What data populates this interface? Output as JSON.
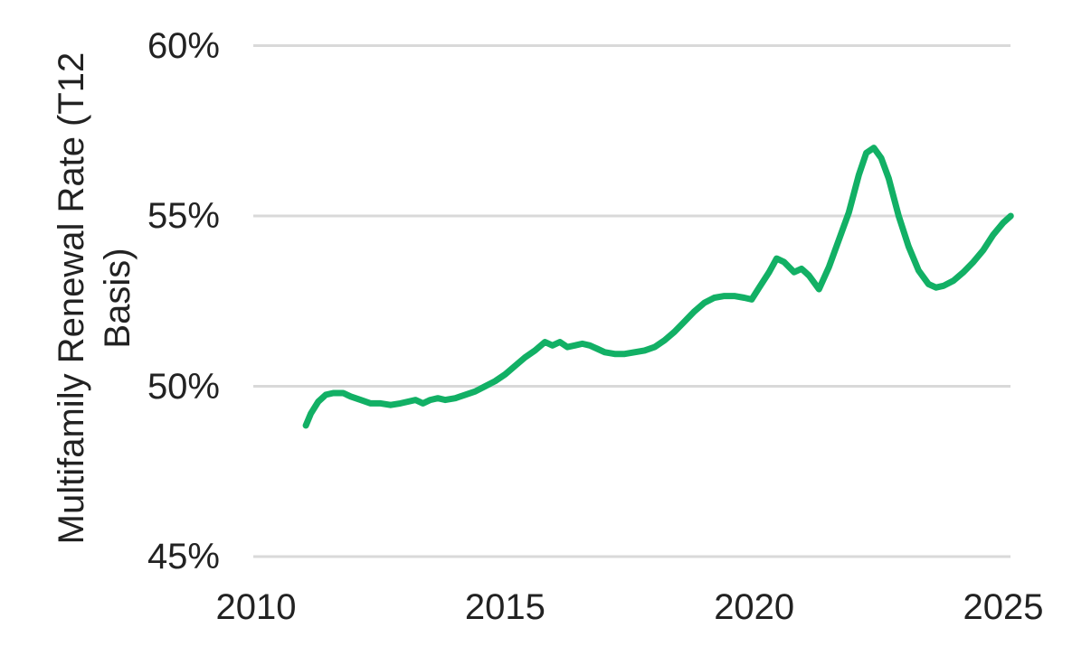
{
  "chart_data": {
    "type": "line",
    "title": "",
    "xlabel": "",
    "ylabel": "Multifamily Renewal Rate (T12 Basis)",
    "ylabel_lines": [
      "Multifamily Renewal Rate (T12",
      "Basis)"
    ],
    "x_ticks": [
      2010,
      2015,
      2020,
      2025
    ],
    "x_tick_labels": [
      "2010",
      "2015",
      "2020",
      "2025"
    ],
    "y_ticks": [
      60,
      55,
      50,
      45
    ],
    "y_tick_labels": [
      "60%",
      "55%",
      "50%",
      "45%"
    ],
    "xlim": [
      2010,
      2025.2
    ],
    "ylim": [
      45,
      60
    ],
    "grid": "horizontal-gridlines-only",
    "legend": "none",
    "colors": {
      "line": "#12b065",
      "gridline": "#d9d9d9",
      "text": "#222222",
      "background": "#ffffff"
    },
    "series": [
      {
        "name": "Multifamily Renewal Rate (T12 Basis)",
        "x": [
          2011.0,
          2011.1,
          2011.25,
          2011.4,
          2011.55,
          2011.75,
          2011.9,
          2012.1,
          2012.3,
          2012.5,
          2012.7,
          2012.9,
          2013.05,
          2013.2,
          2013.35,
          2013.5,
          2013.65,
          2013.8,
          2014.0,
          2014.2,
          2014.4,
          2014.6,
          2014.8,
          2015.0,
          2015.2,
          2015.4,
          2015.6,
          2015.8,
          2015.95,
          2016.1,
          2016.25,
          2016.4,
          2016.55,
          2016.7,
          2016.85,
          2017.0,
          2017.2,
          2017.4,
          2017.6,
          2017.8,
          2018.0,
          2018.2,
          2018.4,
          2018.6,
          2018.8,
          2019.0,
          2019.2,
          2019.4,
          2019.6,
          2019.8,
          2019.95,
          2020.1,
          2020.3,
          2020.45,
          2020.6,
          2020.8,
          2020.95,
          2021.1,
          2021.3,
          2021.5,
          2021.7,
          2021.9,
          2022.1,
          2022.25,
          2022.4,
          2022.55,
          2022.7,
          2022.9,
          2023.1,
          2023.3,
          2023.5,
          2023.65,
          2023.8,
          2024.0,
          2024.2,
          2024.4,
          2024.6,
          2024.8,
          2025.0,
          2025.15
        ],
        "y": [
          48.85,
          49.2,
          49.55,
          49.75,
          49.8,
          49.8,
          49.7,
          49.6,
          49.5,
          49.5,
          49.45,
          49.5,
          49.55,
          49.6,
          49.5,
          49.6,
          49.65,
          49.6,
          49.65,
          49.75,
          49.85,
          50.0,
          50.15,
          50.35,
          50.6,
          50.85,
          51.05,
          51.3,
          51.2,
          51.3,
          51.15,
          51.2,
          51.25,
          51.2,
          51.1,
          51.0,
          50.95,
          50.95,
          51.0,
          51.05,
          51.15,
          51.35,
          51.6,
          51.9,
          52.2,
          52.45,
          52.6,
          52.65,
          52.65,
          52.6,
          52.55,
          52.9,
          53.35,
          53.75,
          53.65,
          53.35,
          53.45,
          53.25,
          52.85,
          53.5,
          54.3,
          55.1,
          56.2,
          56.85,
          57.0,
          56.7,
          56.1,
          55.0,
          54.1,
          53.4,
          53.0,
          52.9,
          52.95,
          53.1,
          53.35,
          53.65,
          54.0,
          54.45,
          54.8,
          55.0
        ]
      }
    ]
  }
}
